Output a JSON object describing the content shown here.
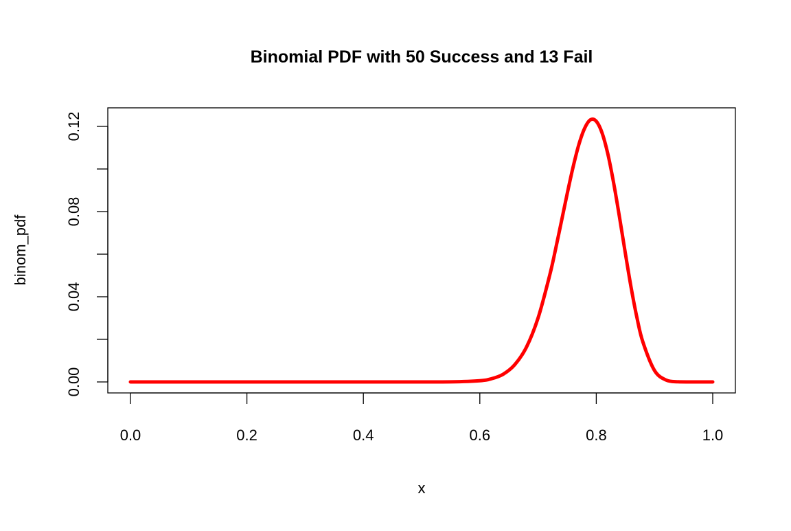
{
  "chart_data": {
    "type": "line",
    "title": "Binomial PDF with 50 Success and 13 Fail",
    "xlabel": "x",
    "ylabel": "binom_pdf",
    "xlim": [
      0,
      1
    ],
    "ylim": [
      0,
      0.124
    ],
    "xticks": [
      0.0,
      0.2,
      0.4,
      0.6,
      0.8,
      1.0
    ],
    "xtick_labels": [
      "0.0",
      "0.2",
      "0.4",
      "0.6",
      "0.8",
      "1.0"
    ],
    "yticks": [
      0.0,
      0.02,
      0.04,
      0.06,
      0.08,
      0.1,
      0.12
    ],
    "ytick_labels": [
      "0.00",
      "",
      "0.04",
      "",
      "0.08",
      "",
      "0.12"
    ],
    "grid": false,
    "line_color": "#ff0000",
    "series": [
      {
        "x": [
          0,
          0.1,
          0.2,
          0.3,
          0.4,
          0.5,
          0.55,
          0.6,
          0.62,
          0.64,
          0.66,
          0.68,
          0.7,
          0.72,
          0.73,
          0.74,
          0.75,
          0.76,
          0.77,
          0.78,
          0.79,
          0.8,
          0.81,
          0.82,
          0.83,
          0.84,
          0.85,
          0.86,
          0.87,
          0.88,
          0.9,
          0.92,
          0.94,
          0.96,
          0.98,
          1.0
        ],
        "y": [
          0,
          0,
          0,
          0,
          0,
          1e-06,
          3.4e-05,
          0.00057,
          0.0015,
          0.0036,
          0.0081,
          0.0163,
          0.03,
          0.0501,
          0.0622,
          0.0752,
          0.0883,
          0.1007,
          0.1114,
          0.1191,
          0.1231,
          0.1224,
          0.1169,
          0.1069,
          0.0932,
          0.0772,
          0.0603,
          0.0441,
          0.03,
          0.0188,
          0.0054,
          0.00089,
          6.2e-05,
          1e-06,
          0,
          0
        ]
      }
    ]
  }
}
